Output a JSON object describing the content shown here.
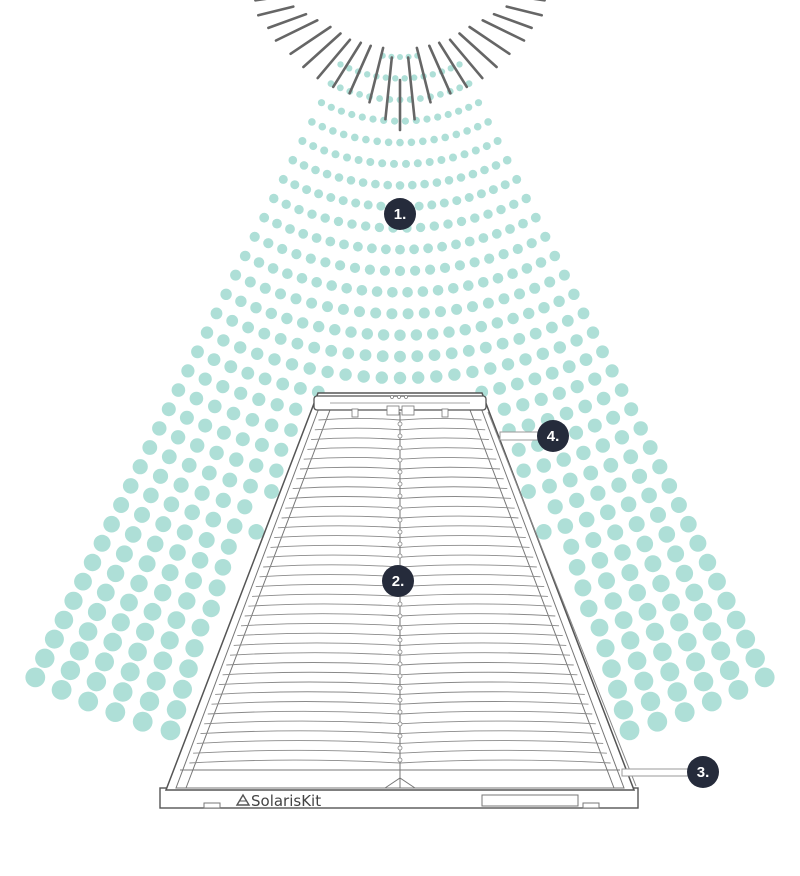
{
  "diagram": {
    "brand": "SolarisKit",
    "callouts": [
      {
        "label": "1."
      },
      {
        "label": "2."
      },
      {
        "label": "3."
      },
      {
        "label": "4."
      }
    ]
  },
  "colors": {
    "beam_dot": "#aedfd7",
    "callout_fill": "#252b3b",
    "callout_text": "#ffffff",
    "line": "#555555",
    "sun_ray": "#666666"
  },
  "icons": [
    "sun-icon",
    "solariskit-logo-icon"
  ]
}
